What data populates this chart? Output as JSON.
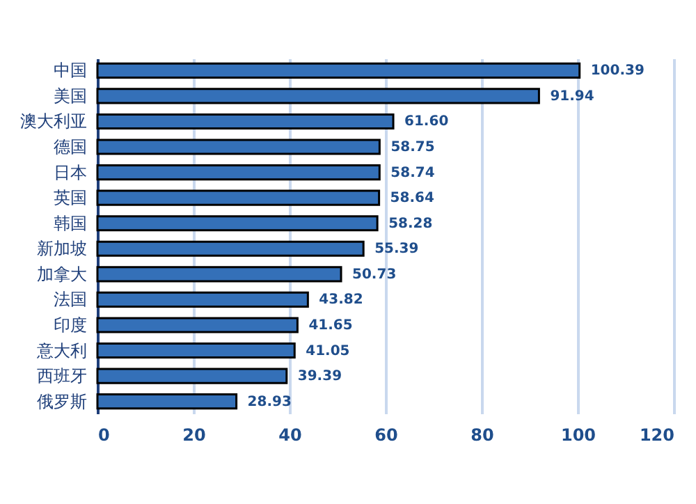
{
  "chart_data": {
    "type": "bar",
    "orientation": "horizontal",
    "categories": [
      "中国",
      "美国",
      "澳大利亚",
      "德国",
      "日本",
      "英国",
      "韩国",
      "新加坡",
      "加拿大",
      "法国",
      "印度",
      "意大利",
      "西班牙",
      "俄罗斯"
    ],
    "values": [
      100.39,
      91.94,
      61.6,
      58.75,
      58.74,
      58.64,
      58.28,
      55.39,
      50.73,
      43.82,
      41.65,
      41.05,
      39.39,
      28.93
    ],
    "value_labels": [
      "100.39",
      "91.94",
      "61.60",
      "58.75",
      "58.74",
      "58.64",
      "58.28",
      "55.39",
      "50.73",
      "43.82",
      "41.65",
      "41.05",
      "39.39",
      "28.93"
    ],
    "color": "#3470b8",
    "xlim": [
      0,
      120
    ],
    "xticks": [
      0,
      20,
      40,
      60,
      80,
      100,
      120
    ],
    "grid": "x"
  }
}
